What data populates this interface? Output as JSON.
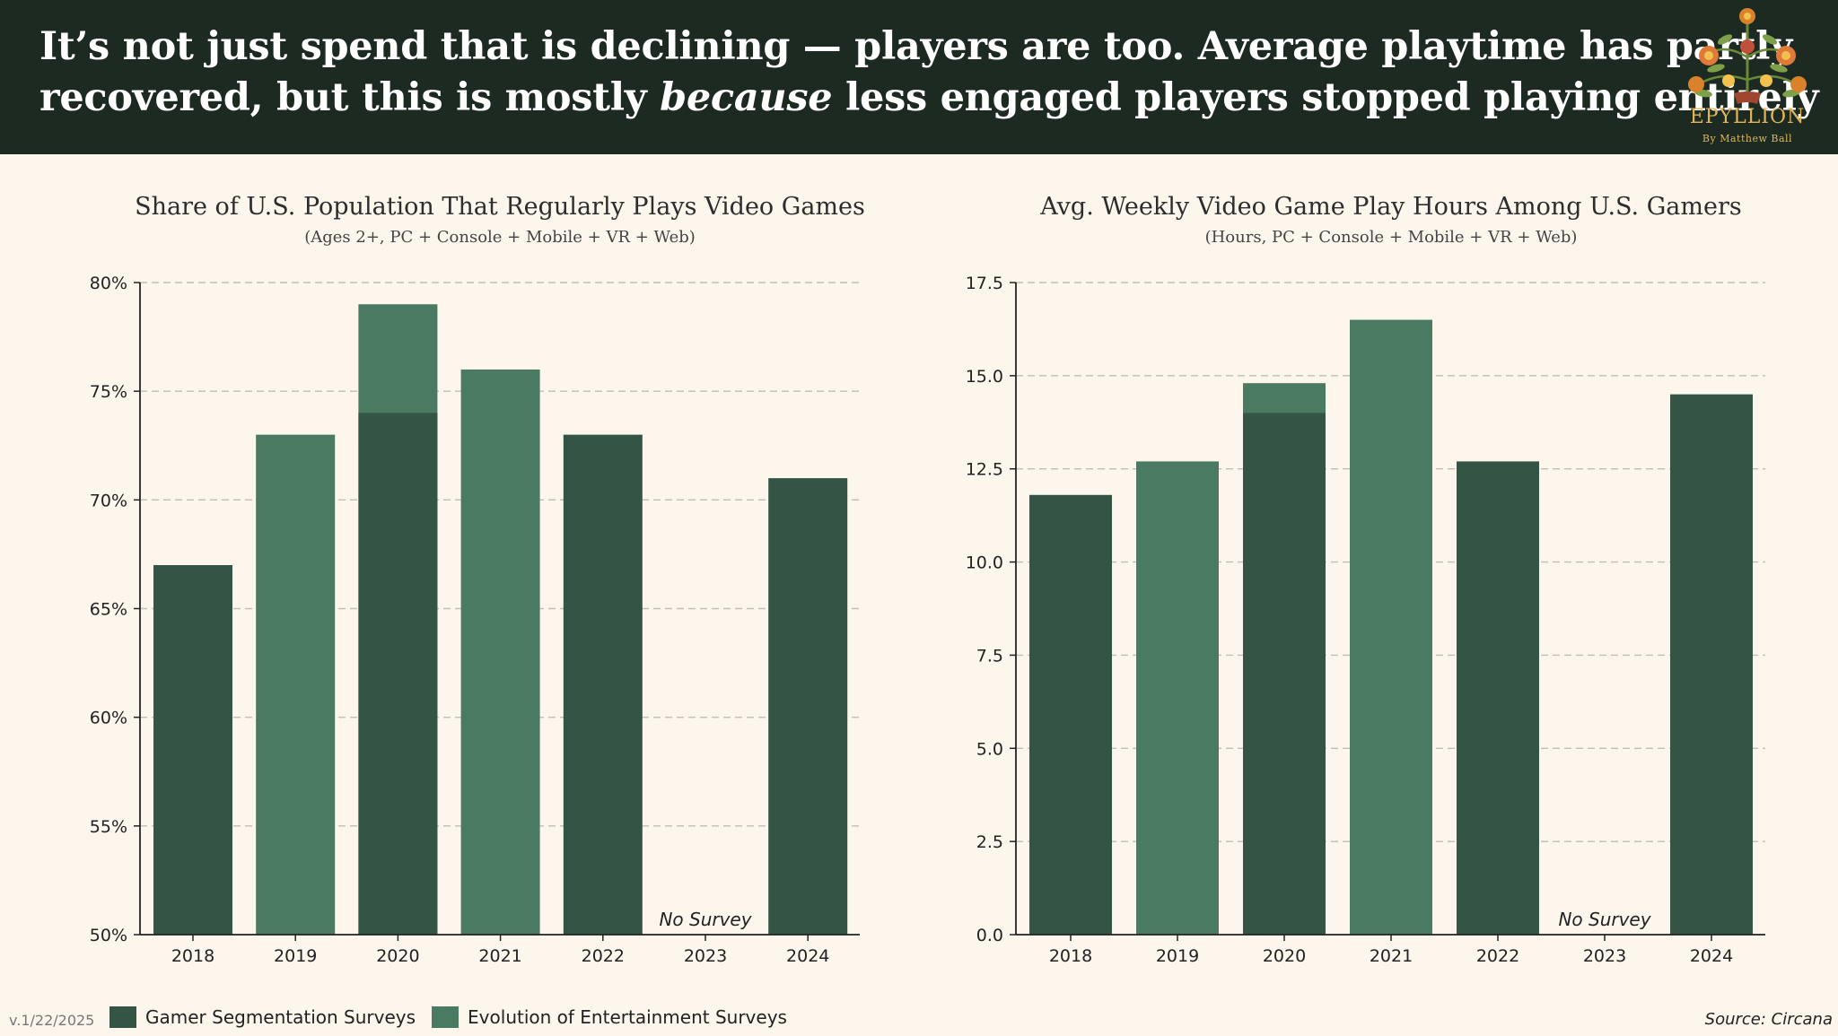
{
  "header": {
    "line1": "It’s not just spend that is declining — players are too. Average playtime has partly",
    "line2_pre": "recovered, but this is mostly ",
    "line2_em": "because",
    "line2_post": " less engaged players stopped playing entirely"
  },
  "logo": {
    "name": "EPYLLION",
    "byline": "By Matthew Ball",
    "icon": "floral-tree-logo-icon"
  },
  "colors": {
    "dark": "#345446",
    "light": "#4a7a62",
    "header_bg": "#1c2a22",
    "background": "#fcf6ec",
    "logo_gold": "#e0b65a"
  },
  "legend": [
    {
      "label": "Gamer Segmentation Surveys",
      "color": "#345446"
    },
    {
      "label": "Evolution of Entertainment Surveys",
      "color": "#4a7a62"
    }
  ],
  "footer": {
    "version": "v.1/22/2025",
    "source": "Source: Circana"
  },
  "chart_data": [
    {
      "type": "bar",
      "title": "Share of U.S. Population That Regularly Plays Video Games",
      "subtitle": "(Ages 2+, PC + Console + Mobile + VR + Web)",
      "categories": [
        "2018",
        "2019",
        "2020",
        "2021",
        "2022",
        "2023",
        "2024"
      ],
      "ylim": [
        50,
        80
      ],
      "yticks": [
        50,
        55,
        60,
        65,
        70,
        75,
        80
      ],
      "ytick_labels": [
        "50%",
        "55%",
        "60%",
        "65%",
        "70%",
        "75%",
        "80%"
      ],
      "grid": true,
      "series": [
        {
          "name": "Gamer Segmentation Surveys",
          "values": [
            67,
            null,
            74,
            null,
            73,
            null,
            71
          ]
        },
        {
          "name": "Evolution of Entertainment Surveys",
          "values": [
            null,
            73,
            79,
            76,
            null,
            null,
            null
          ]
        }
      ],
      "annotations": [
        {
          "category": "2023",
          "text": "No Survey"
        }
      ]
    },
    {
      "type": "bar",
      "title": "Avg. Weekly Video Game Play Hours Among U.S. Gamers",
      "subtitle": "(Hours, PC + Console + Mobile + VR + Web)",
      "categories": [
        "2018",
        "2019",
        "2020",
        "2021",
        "2022",
        "2023",
        "2024"
      ],
      "ylim": [
        0,
        17.5
      ],
      "yticks": [
        0,
        2.5,
        5,
        7.5,
        10,
        12.5,
        15,
        17.5
      ],
      "ytick_labels": [
        "0.0",
        "2.5",
        "5.0",
        "7.5",
        "10.0",
        "12.5",
        "15.0",
        "17.5"
      ],
      "grid": true,
      "series": [
        {
          "name": "Gamer Segmentation Surveys",
          "values": [
            11.8,
            null,
            14.0,
            null,
            12.7,
            null,
            14.5
          ]
        },
        {
          "name": "Evolution of Entertainment Surveys",
          "values": [
            null,
            12.7,
            14.8,
            16.5,
            null,
            null,
            null
          ]
        }
      ],
      "annotations": [
        {
          "category": "2023",
          "text": "No Survey"
        }
      ]
    }
  ]
}
